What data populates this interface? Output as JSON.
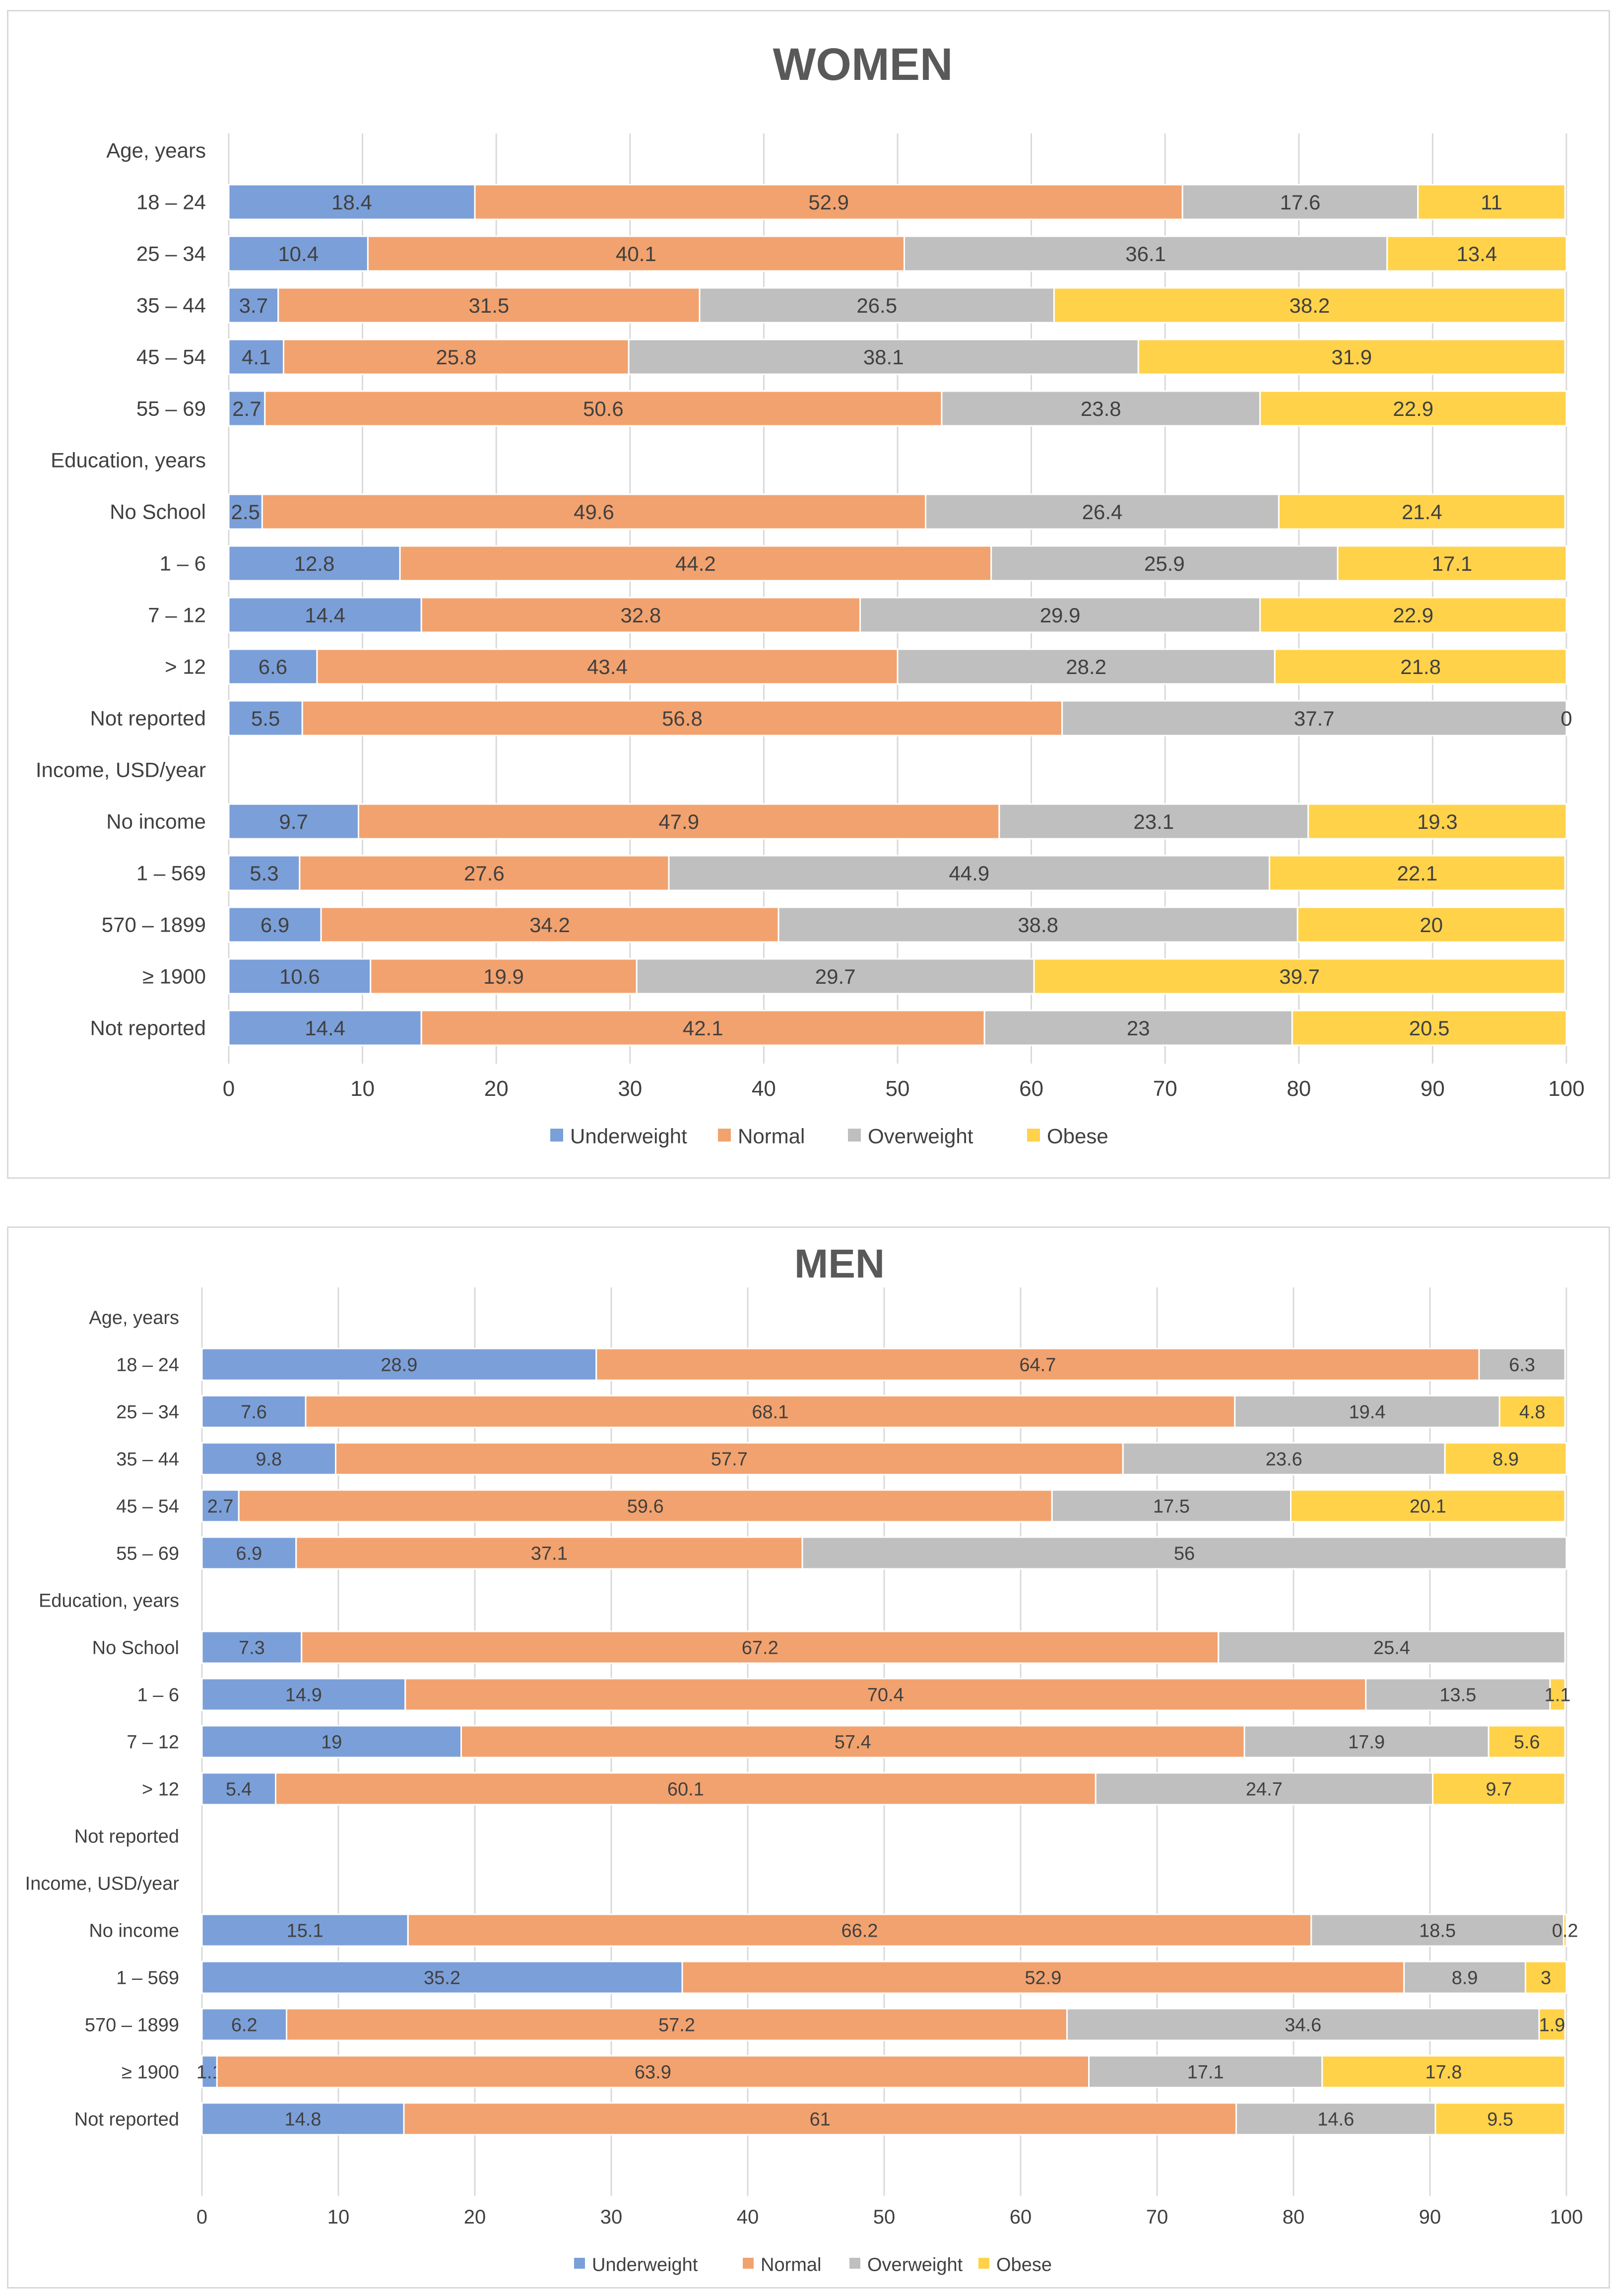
{
  "colors": {
    "Underweight": "#7b9fd8",
    "Normal": "#f2a26e",
    "Overweight": "#bfbfbf",
    "Obese": "#ffd24a",
    "gridline": "#d9d9d9",
    "axis_text": "#404040",
    "title_text": "#595959"
  },
  "chart_data": [
    {
      "type": "bar",
      "orientation": "horizontal",
      "stacked": true,
      "title": "WOMEN",
      "xlabel": "",
      "ylabel": "",
      "xlim": [
        0,
        100
      ],
      "xticks": [
        0,
        10,
        20,
        30,
        40,
        50,
        60,
        70,
        80,
        90,
        100
      ],
      "grid": true,
      "legend_position": "bottom",
      "categories": [
        "Age, years",
        "18 – 24",
        "25 – 34",
        "35 – 44",
        "45 – 54",
        "55 – 69",
        "Education, years",
        "No School",
        "1 – 6",
        "7 – 12",
        "> 12",
        "Not reported",
        "Income, USD/year",
        "No income",
        "1 – 569",
        "570 – 1899",
        "≥ 1900",
        "Not reported"
      ],
      "series": [
        {
          "name": "Underweight",
          "values": [
            null,
            18.4,
            10.4,
            3.7,
            4.1,
            2.7,
            null,
            2.5,
            12.8,
            14.4,
            6.6,
            5.5,
            null,
            9.7,
            5.3,
            6.9,
            10.6,
            14.4
          ]
        },
        {
          "name": "Normal",
          "values": [
            null,
            52.9,
            40.1,
            31.5,
            25.8,
            50.6,
            null,
            49.6,
            44.2,
            32.8,
            43.4,
            56.8,
            null,
            47.9,
            27.6,
            34.2,
            19.9,
            42.1
          ]
        },
        {
          "name": "Overweight",
          "values": [
            null,
            17.6,
            36.1,
            26.5,
            38.1,
            23.8,
            null,
            26.4,
            25.9,
            29.9,
            28.2,
            37.7,
            null,
            23.1,
            44.9,
            38.8,
            29.7,
            23
          ]
        },
        {
          "name": "Obese",
          "values": [
            null,
            11,
            13.4,
            38.2,
            31.9,
            22.9,
            null,
            21.4,
            17.1,
            22.9,
            21.8,
            0,
            null,
            19.3,
            22.1,
            20,
            39.7,
            20.5
          ]
        }
      ]
    },
    {
      "type": "bar",
      "orientation": "horizontal",
      "stacked": true,
      "title": "MEN",
      "xlabel": "",
      "ylabel": "",
      "xlim": [
        0,
        100
      ],
      "xticks": [
        0,
        10,
        20,
        30,
        40,
        50,
        60,
        70,
        80,
        90,
        100
      ],
      "grid": true,
      "legend_position": "bottom",
      "categories": [
        "Age, years",
        "18 – 24",
        "25 – 34",
        "35 – 44",
        "45 – 54",
        "55 – 69",
        "Education, years",
        "No School",
        "1 – 6",
        "7 – 12",
        "> 12",
        "Not reported",
        "Income, USD/year",
        "No income",
        "1 – 569",
        "570 – 1899",
        "≥ 1900",
        "Not reported"
      ],
      "series": [
        {
          "name": "Underweight",
          "values": [
            null,
            28.9,
            7.6,
            9.8,
            2.7,
            6.9,
            null,
            7.3,
            14.9,
            19,
            5.4,
            null,
            null,
            15.1,
            35.2,
            6.2,
            1.1,
            14.8
          ]
        },
        {
          "name": "Normal",
          "values": [
            null,
            64.7,
            68.1,
            57.7,
            59.6,
            37.1,
            null,
            67.2,
            70.4,
            57.4,
            60.1,
            null,
            null,
            66.2,
            52.9,
            57.2,
            63.9,
            61
          ]
        },
        {
          "name": "Overweight",
          "values": [
            null,
            6.3,
            19.4,
            23.6,
            17.5,
            56,
            null,
            25.4,
            13.5,
            17.9,
            24.7,
            null,
            null,
            18.5,
            8.9,
            34.6,
            17.1,
            14.6
          ]
        },
        {
          "name": "Obese",
          "values": [
            null,
            null,
            4.8,
            8.9,
            20.1,
            null,
            null,
            null,
            1.1,
            5.6,
            9.7,
            null,
            null,
            0.2,
            3,
            1.9,
            17.8,
            9.5
          ]
        }
      ]
    }
  ]
}
